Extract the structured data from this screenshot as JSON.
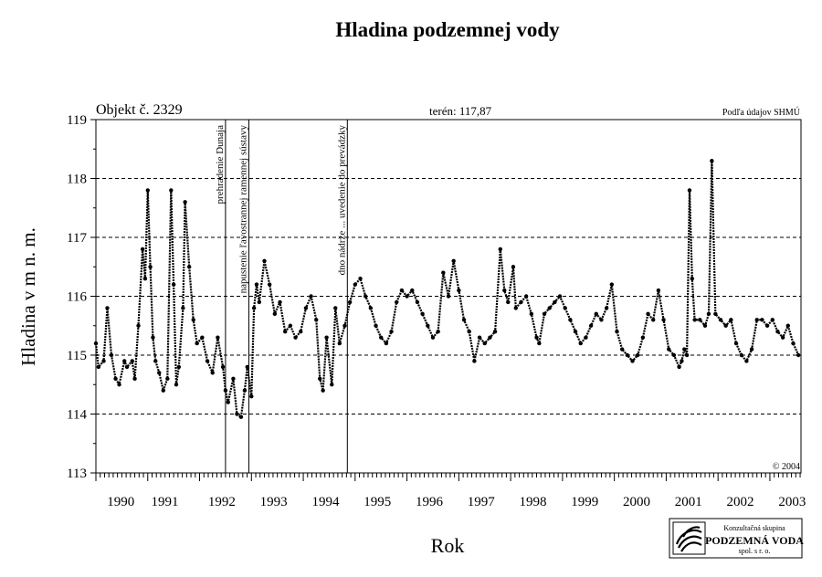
{
  "chart_data": {
    "type": "line",
    "title": "Hladina podzemnej vody",
    "xlabel": "Rok",
    "ylabel": "Hladina v m n. m.",
    "object_label": "Objekt č. 2329",
    "terrain_label": "terén: 117,87",
    "source_label": "Podľa údajov SHMÚ",
    "copyright": "© 2004",
    "ylim": [
      113,
      119
    ],
    "xlim": [
      1990,
      2003.6
    ],
    "yticks": [
      "113",
      "114",
      "115",
      "116",
      "117",
      "118",
      "119"
    ],
    "xtick_labels": [
      {
        "label": "1990",
        "x": 1990.05
      },
      {
        "label": "1991",
        "x": 1990.9
      },
      {
        "label": "1992",
        "x": 1992
      },
      {
        "label": "1993",
        "x": 1993
      },
      {
        "label": "1994",
        "x": 1994
      },
      {
        "label": "1995",
        "x": 1995
      },
      {
        "label": "1996",
        "x": 1996
      },
      {
        "label": "1997",
        "x": 1997
      },
      {
        "label": "1998",
        "x": 1998
      },
      {
        "label": "1999",
        "x": 1999
      },
      {
        "label": "2000",
        "x": 2000
      },
      {
        "label": "2001",
        "x": 2001
      },
      {
        "label": "2002",
        "x": 2002
      },
      {
        "label": "2003",
        "x": 2003
      }
    ],
    "dashed_gridlines_y": [
      114,
      115,
      116,
      117,
      118
    ],
    "events": [
      {
        "x": 1992.5,
        "label": "prehradenie Dunaja"
      },
      {
        "x": 1992.95,
        "label": "napustenie ľavostrannej ramennej sústavy"
      },
      {
        "x": 1994.85,
        "label": "dno nádrže ... uvedenie do prevádzky"
      }
    ],
    "series": [
      {
        "color": "#000000",
        "points": [
          [
            1990.0,
            115.2
          ],
          [
            1990.05,
            114.8
          ],
          [
            1990.15,
            114.9
          ],
          [
            1990.22,
            115.8
          ],
          [
            1990.3,
            115.0
          ],
          [
            1990.38,
            114.6
          ],
          [
            1990.45,
            114.5
          ],
          [
            1990.55,
            114.9
          ],
          [
            1990.6,
            114.8
          ],
          [
            1990.7,
            114.9
          ],
          [
            1990.75,
            114.6
          ],
          [
            1990.82,
            115.5
          ],
          [
            1990.9,
            116.8
          ],
          [
            1990.95,
            116.3
          ],
          [
            1991.0,
            117.8
          ],
          [
            1991.05,
            116.5
          ],
          [
            1991.1,
            115.3
          ],
          [
            1991.15,
            114.9
          ],
          [
            1991.22,
            114.7
          ],
          [
            1991.3,
            114.4
          ],
          [
            1991.38,
            114.6
          ],
          [
            1991.45,
            117.8
          ],
          [
            1991.5,
            116.2
          ],
          [
            1991.55,
            114.5
          ],
          [
            1991.6,
            114.8
          ],
          [
            1991.68,
            115.8
          ],
          [
            1991.72,
            117.6
          ],
          [
            1991.8,
            116.5
          ],
          [
            1991.88,
            115.6
          ],
          [
            1991.95,
            115.2
          ],
          [
            1992.05,
            115.3
          ],
          [
            1992.15,
            114.9
          ],
          [
            1992.25,
            114.7
          ],
          [
            1992.35,
            115.3
          ],
          [
            1992.45,
            114.8
          ],
          [
            1992.5,
            114.4
          ],
          [
            1992.55,
            114.2
          ],
          [
            1992.65,
            114.6
          ],
          [
            1992.72,
            114.0
          ],
          [
            1992.8,
            113.95
          ],
          [
            1992.87,
            114.4
          ],
          [
            1992.92,
            114.8
          ],
          [
            1993.0,
            114.3
          ],
          [
            1993.05,
            115.8
          ],
          [
            1993.1,
            116.2
          ],
          [
            1993.15,
            115.9
          ],
          [
            1993.25,
            116.6
          ],
          [
            1993.35,
            116.2
          ],
          [
            1993.45,
            115.7
          ],
          [
            1993.55,
            115.9
          ],
          [
            1993.65,
            115.4
          ],
          [
            1993.75,
            115.5
          ],
          [
            1993.85,
            115.3
          ],
          [
            1993.95,
            115.4
          ],
          [
            1994.05,
            115.8
          ],
          [
            1994.15,
            116.0
          ],
          [
            1994.25,
            115.6
          ],
          [
            1994.32,
            114.6
          ],
          [
            1994.38,
            114.4
          ],
          [
            1994.45,
            115.3
          ],
          [
            1994.55,
            114.5
          ],
          [
            1994.62,
            115.8
          ],
          [
            1994.7,
            115.2
          ],
          [
            1994.8,
            115.5
          ],
          [
            1994.9,
            115.9
          ],
          [
            1995.0,
            116.2
          ],
          [
            1995.1,
            116.3
          ],
          [
            1995.2,
            116.0
          ],
          [
            1995.3,
            115.8
          ],
          [
            1995.4,
            115.5
          ],
          [
            1995.5,
            115.3
          ],
          [
            1995.6,
            115.2
          ],
          [
            1995.7,
            115.4
          ],
          [
            1995.8,
            115.9
          ],
          [
            1995.9,
            116.1
          ],
          [
            1996.0,
            116.0
          ],
          [
            1996.1,
            116.1
          ],
          [
            1996.2,
            115.9
          ],
          [
            1996.3,
            115.7
          ],
          [
            1996.4,
            115.5
          ],
          [
            1996.5,
            115.3
          ],
          [
            1996.6,
            115.4
          ],
          [
            1996.7,
            116.4
          ],
          [
            1996.8,
            116.0
          ],
          [
            1996.9,
            116.6
          ],
          [
            1997.0,
            116.1
          ],
          [
            1997.1,
            115.6
          ],
          [
            1997.2,
            115.4
          ],
          [
            1997.3,
            114.9
          ],
          [
            1997.4,
            115.3
          ],
          [
            1997.5,
            115.2
          ],
          [
            1997.6,
            115.3
          ],
          [
            1997.7,
            115.4
          ],
          [
            1997.8,
            116.8
          ],
          [
            1997.88,
            116.1
          ],
          [
            1997.95,
            115.9
          ],
          [
            1998.05,
            116.5
          ],
          [
            1998.1,
            115.8
          ],
          [
            1998.2,
            115.9
          ],
          [
            1998.3,
            116.0
          ],
          [
            1998.4,
            115.7
          ],
          [
            1998.5,
            115.3
          ],
          [
            1998.55,
            115.2
          ],
          [
            1998.65,
            115.7
          ],
          [
            1998.75,
            115.8
          ],
          [
            1998.85,
            115.9
          ],
          [
            1998.95,
            116.0
          ],
          [
            1999.05,
            115.8
          ],
          [
            1999.15,
            115.6
          ],
          [
            1999.25,
            115.4
          ],
          [
            1999.35,
            115.2
          ],
          [
            1999.45,
            115.3
          ],
          [
            1999.55,
            115.5
          ],
          [
            1999.65,
            115.7
          ],
          [
            1999.75,
            115.6
          ],
          [
            1999.85,
            115.8
          ],
          [
            1999.95,
            116.2
          ],
          [
            2000.05,
            115.4
          ],
          [
            2000.15,
            115.1
          ],
          [
            2000.25,
            115.0
          ],
          [
            2000.35,
            114.9
          ],
          [
            2000.45,
            115.0
          ],
          [
            2000.55,
            115.3
          ],
          [
            2000.65,
            115.7
          ],
          [
            2000.75,
            115.6
          ],
          [
            2000.85,
            116.1
          ],
          [
            2000.95,
            115.6
          ],
          [
            2001.05,
            115.1
          ],
          [
            2001.15,
            115.0
          ],
          [
            2001.25,
            114.8
          ],
          [
            2001.3,
            114.9
          ],
          [
            2001.35,
            115.1
          ],
          [
            2001.4,
            115.0
          ],
          [
            2001.45,
            117.8
          ],
          [
            2001.5,
            116.3
          ],
          [
            2001.55,
            115.6
          ],
          [
            2001.65,
            115.6
          ],
          [
            2001.75,
            115.5
          ],
          [
            2001.82,
            115.7
          ],
          [
            2001.88,
            118.3
          ],
          [
            2001.95,
            115.7
          ],
          [
            2002.05,
            115.6
          ],
          [
            2002.15,
            115.5
          ],
          [
            2002.25,
            115.6
          ],
          [
            2002.35,
            115.2
          ],
          [
            2002.45,
            115.0
          ],
          [
            2002.55,
            114.9
          ],
          [
            2002.65,
            115.1
          ],
          [
            2002.75,
            115.6
          ],
          [
            2002.85,
            115.6
          ],
          [
            2002.95,
            115.5
          ],
          [
            2003.05,
            115.6
          ],
          [
            2003.15,
            115.4
          ],
          [
            2003.25,
            115.3
          ],
          [
            2003.35,
            115.5
          ],
          [
            2003.45,
            115.2
          ],
          [
            2003.55,
            115.0
          ]
        ]
      }
    ]
  },
  "logo": {
    "line1": "Konzultačná skupina",
    "line2": "PODZEMNÁ VODA",
    "line3": "spol. s r. o."
  }
}
